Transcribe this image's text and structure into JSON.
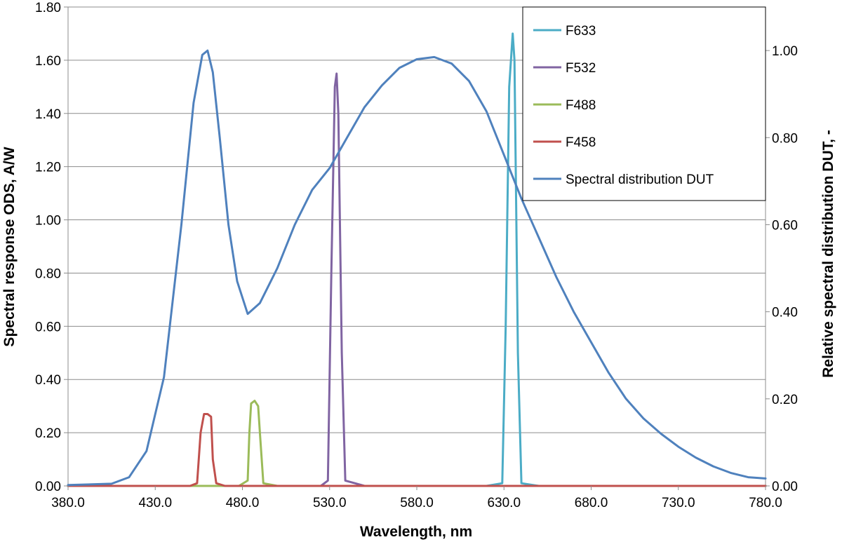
{
  "chart_data": {
    "type": "line",
    "xlabel": "Wavelength, nm",
    "ylabel": "Spectral response ODS, A/W",
    "y2label": "Relative spectral distribution DUT, -",
    "xlim": [
      380,
      780
    ],
    "ylim": [
      0,
      1.8
    ],
    "y2lim": [
      0,
      1.1
    ],
    "x_ticks": [
      "380.0",
      "430.0",
      "480.0",
      "530.0",
      "580.0",
      "630.0",
      "680.0",
      "730.0",
      "780.0"
    ],
    "y_ticks": [
      "0.00",
      "0.20",
      "0.40",
      "0.60",
      "0.80",
      "1.00",
      "1.20",
      "1.40",
      "1.60",
      "1.80"
    ],
    "y2_ticks": [
      "0.00",
      "0.20",
      "0.40",
      "0.60",
      "0.80",
      "1.00"
    ],
    "grid": true,
    "legend_position": "top-right",
    "series": [
      {
        "name": "F633",
        "color": "#4bacc6",
        "axis": "left",
        "x": [
          380,
          620,
          629,
          631,
          633,
          635,
          636,
          638,
          640,
          650,
          780
        ],
        "y": [
          0,
          0,
          0.01,
          0.6,
          1.5,
          1.7,
          1.6,
          0.5,
          0.01,
          0,
          0
        ]
      },
      {
        "name": "F532",
        "color": "#8064a2",
        "axis": "left",
        "x": [
          380,
          525,
          529,
          531,
          533,
          534,
          535,
          537,
          539,
          550,
          780
        ],
        "y": [
          0,
          0,
          0.02,
          0.8,
          1.5,
          1.55,
          1.4,
          0.5,
          0.02,
          0,
          0
        ]
      },
      {
        "name": "F488",
        "color": "#9bbb59",
        "axis": "left",
        "x": [
          380,
          478,
          483,
          484,
          485,
          487,
          489,
          490,
          492,
          500,
          780
        ],
        "y": [
          0,
          0,
          0.02,
          0.2,
          0.31,
          0.32,
          0.3,
          0.2,
          0.01,
          0,
          0
        ]
      },
      {
        "name": "F458",
        "color": "#c0504d",
        "axis": "left",
        "x": [
          380,
          450,
          454,
          456,
          458,
          460,
          462,
          463,
          465,
          470,
          780
        ],
        "y": [
          0,
          0,
          0.01,
          0.2,
          0.27,
          0.27,
          0.26,
          0.1,
          0.01,
          0,
          0
        ]
      },
      {
        "name": "Spectral distribution DUT",
        "color": "#4f81bd",
        "axis": "right",
        "x": [
          380,
          405,
          415,
          425,
          435,
          445,
          452,
          457,
          460,
          463,
          467,
          472,
          477,
          483,
          490,
          500,
          510,
          520,
          530,
          540,
          550,
          560,
          570,
          580,
          590,
          600,
          610,
          620,
          630,
          640,
          650,
          660,
          670,
          680,
          690,
          700,
          710,
          720,
          730,
          740,
          750,
          760,
          770,
          780
        ],
        "y": [
          0.002,
          0.005,
          0.02,
          0.08,
          0.25,
          0.6,
          0.88,
          0.99,
          1.0,
          0.95,
          0.8,
          0.6,
          0.47,
          0.395,
          0.42,
          0.5,
          0.6,
          0.68,
          0.73,
          0.8,
          0.87,
          0.92,
          0.96,
          0.98,
          0.985,
          0.97,
          0.93,
          0.86,
          0.76,
          0.66,
          0.57,
          0.48,
          0.4,
          0.33,
          0.26,
          0.2,
          0.155,
          0.12,
          0.09,
          0.065,
          0.045,
          0.03,
          0.02,
          0.017
        ]
      }
    ]
  }
}
